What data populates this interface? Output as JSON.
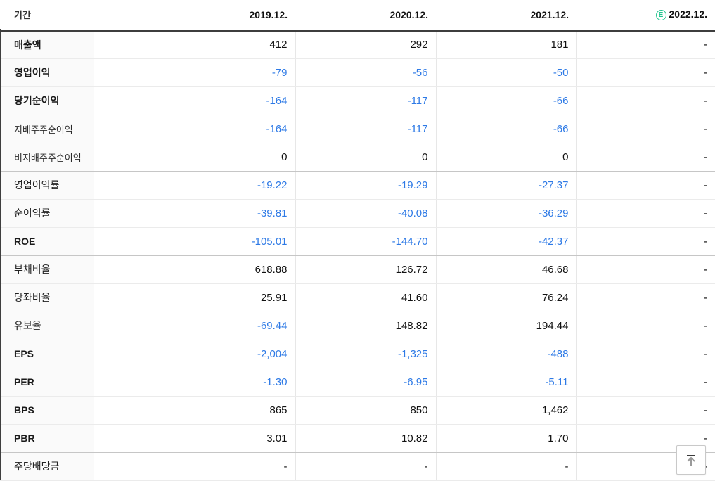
{
  "table": {
    "period_header": "기간",
    "year_columns": [
      "2019.12.",
      "2020.12.",
      "2021.12."
    ],
    "estimate_column": {
      "badge": "E",
      "year": "2022.12."
    },
    "rows": [
      {
        "label": "매출액",
        "style": "bold",
        "group_end": false,
        "values": [
          "412",
          "292",
          "181",
          "-"
        ]
      },
      {
        "label": "영업이익",
        "style": "bold",
        "group_end": false,
        "values": [
          "-79",
          "-56",
          "-50",
          "-"
        ]
      },
      {
        "label": "당기순이익",
        "style": "bold",
        "group_end": false,
        "values": [
          "-164",
          "-117",
          "-66",
          "-"
        ]
      },
      {
        "label": "지배주주순이익",
        "style": "sub",
        "group_end": false,
        "values": [
          "-164",
          "-117",
          "-66",
          "-"
        ]
      },
      {
        "label": "비지배주주순이익",
        "style": "sub",
        "group_end": true,
        "values": [
          "0",
          "0",
          "0",
          "-"
        ]
      },
      {
        "label": "영업이익률",
        "style": "normal",
        "group_end": false,
        "values": [
          "-19.22",
          "-19.29",
          "-27.37",
          "-"
        ]
      },
      {
        "label": "순이익률",
        "style": "normal",
        "group_end": false,
        "values": [
          "-39.81",
          "-40.08",
          "-36.29",
          "-"
        ]
      },
      {
        "label": "ROE",
        "style": "bold",
        "group_end": true,
        "values": [
          "-105.01",
          "-144.70",
          "-42.37",
          "-"
        ]
      },
      {
        "label": "부채비율",
        "style": "normal",
        "group_end": false,
        "values": [
          "618.88",
          "126.72",
          "46.68",
          "-"
        ]
      },
      {
        "label": "당좌비율",
        "style": "normal",
        "group_end": false,
        "values": [
          "25.91",
          "41.60",
          "76.24",
          "-"
        ]
      },
      {
        "label": "유보율",
        "style": "normal",
        "group_end": true,
        "values": [
          "-69.44",
          "148.82",
          "194.44",
          "-"
        ]
      },
      {
        "label": "EPS",
        "style": "bold",
        "group_end": false,
        "values": [
          "-2,004",
          "-1,325",
          "-488",
          "-"
        ]
      },
      {
        "label": "PER",
        "style": "bold",
        "group_end": false,
        "values": [
          "-1.30",
          "-6.95",
          "-5.11",
          "-"
        ]
      },
      {
        "label": "BPS",
        "style": "bold",
        "group_end": false,
        "values": [
          "865",
          "850",
          "1,462",
          "-"
        ]
      },
      {
        "label": "PBR",
        "style": "bold",
        "group_end": true,
        "values": [
          "3.01",
          "10.82",
          "1.70",
          "-"
        ]
      },
      {
        "label": "주당배당금",
        "style": "normal",
        "group_end": false,
        "values": [
          "-",
          "-",
          "-",
          "-"
        ]
      }
    ]
  },
  "colors": {
    "negative": "#2e7ae6",
    "text_dark": "#111111",
    "estimate_green": "#21c48d",
    "header_border": "#3e3e3e"
  },
  "scroll_top_button": {
    "icon": "arrow-up-to-line"
  }
}
